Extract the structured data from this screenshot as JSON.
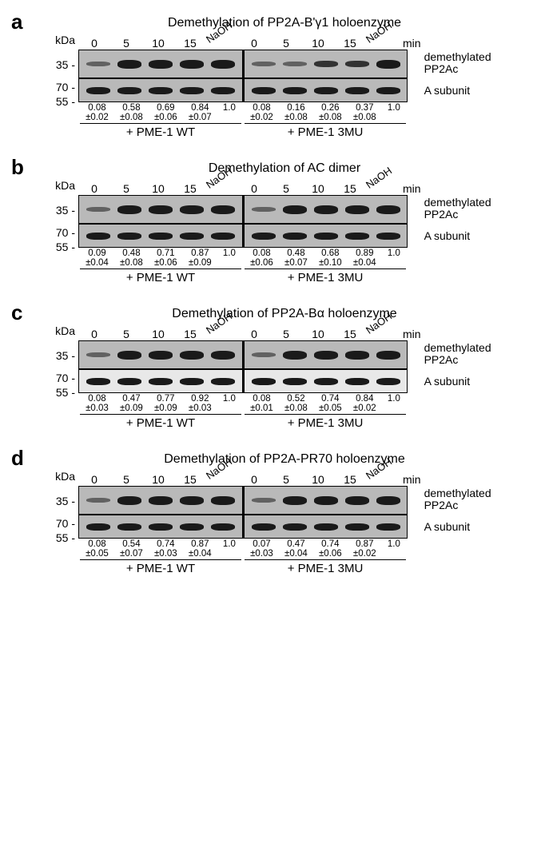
{
  "panels": [
    {
      "letter": "a",
      "title": "Demethylation of PP2A-B'γ1 holoenzyme",
      "gel_bg": "#b9b9b9",
      "bottom_bg": "#b9b9b9"
    },
    {
      "letter": "b",
      "title": "Demethylation of AC dimer",
      "gel_bg": "#b9b9b9",
      "bottom_bg": "#b9b9b9"
    },
    {
      "letter": "c",
      "title": "Demethylation of PP2A-Bα holoenzyme",
      "gel_bg": "#b9b9b9",
      "bottom_bg": "#e8e8e8"
    },
    {
      "letter": "d",
      "title": "Demethylation of PP2A-PR70 holoenzyme",
      "gel_bg": "#b9b9b9",
      "bottom_bg": "#b9b9b9"
    }
  ],
  "axis": {
    "kda": "kDa",
    "mw_top": "35 -",
    "mw_mid": "70 -",
    "mw_bot": "55 -",
    "timepoints": [
      "0",
      "5",
      "10",
      "15"
    ],
    "naoh": "NaOH",
    "min": "min",
    "right_top1": "demethylated",
    "right_top2": "PP2Ac",
    "right_bot": "A subunit",
    "treat_wt": "+ PME-1 WT",
    "treat_mu": "+ PME-1 3MU"
  },
  "values": {
    "a": {
      "wt": [
        [
          "0.08",
          "±0.02"
        ],
        [
          "0.58",
          "±0.08"
        ],
        [
          "0.69",
          "±0.06"
        ],
        [
          "0.84",
          "±0.07"
        ],
        [
          "1.0",
          ""
        ]
      ],
      "mu": [
        [
          "0.08",
          "±0.02"
        ],
        [
          "0.16",
          "±0.08"
        ],
        [
          "0.26",
          "±0.08"
        ],
        [
          "0.37",
          "±0.08"
        ],
        [
          "1.0",
          ""
        ]
      ]
    },
    "b": {
      "wt": [
        [
          "0.09",
          "±0.04"
        ],
        [
          "0.48",
          "±0.08"
        ],
        [
          "0.71",
          "±0.06"
        ],
        [
          "0.87",
          "±0.09"
        ],
        [
          "1.0",
          ""
        ]
      ],
      "mu": [
        [
          "0.08",
          "±0.06"
        ],
        [
          "0.48",
          "±0.07"
        ],
        [
          "0.68",
          "±0.10"
        ],
        [
          "0.89",
          "±0.04"
        ],
        [
          "1.0",
          ""
        ]
      ]
    },
    "c": {
      "wt": [
        [
          "0.08",
          "±0.03"
        ],
        [
          "0.47",
          "±0.09"
        ],
        [
          "0.77",
          "±0.09"
        ],
        [
          "0.92",
          "±0.03"
        ],
        [
          "1.0",
          ""
        ]
      ],
      "mu": [
        [
          "0.08",
          "±0.01"
        ],
        [
          "0.52",
          "±0.08"
        ],
        [
          "0.74",
          "±0.05"
        ],
        [
          "0.84",
          "±0.02"
        ],
        [
          "1.0",
          ""
        ]
      ]
    },
    "d": {
      "wt": [
        [
          "0.08",
          "±0.05"
        ],
        [
          "0.54",
          "±0.07"
        ],
        [
          "0.74",
          "±0.03"
        ],
        [
          "0.87",
          "±0.04"
        ],
        [
          "1.0",
          ""
        ]
      ],
      "mu": [
        [
          "0.07",
          "±0.03"
        ],
        [
          "0.47",
          "±0.04"
        ],
        [
          "0.74",
          "±0.06"
        ],
        [
          "0.87",
          "±0.02"
        ],
        [
          "1.0",
          ""
        ]
      ]
    }
  },
  "styling": {
    "band_color": "#1a1a1a",
    "panel_letter_fontsize": 26,
    "title_fontsize": 16,
    "label_fontsize": 14,
    "value_fontsize": 11.5,
    "background": "#ffffff"
  }
}
